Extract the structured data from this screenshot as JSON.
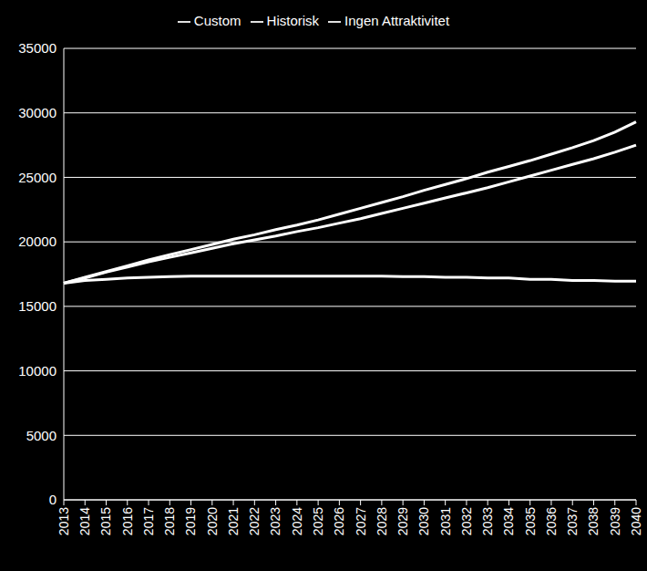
{
  "chart_data": {
    "type": "line",
    "categories": [
      "2013",
      "2014",
      "2015",
      "2016",
      "2017",
      "2018",
      "2019",
      "2020",
      "2021",
      "2022",
      "2023",
      "2024",
      "2025",
      "2026",
      "2027",
      "2028",
      "2029",
      "2030",
      "2031",
      "2032",
      "2033",
      "2034",
      "2035",
      "2036",
      "2037",
      "2038",
      "2039",
      "2040"
    ],
    "series": [
      {
        "name": "Ingen Attraktivitet",
        "color": "#ffffff",
        "values": [
          16800,
          17000,
          17100,
          17200,
          17250,
          17300,
          17350,
          17350,
          17350,
          17350,
          17350,
          17350,
          17350,
          17350,
          17350,
          17350,
          17300,
          17300,
          17250,
          17250,
          17200,
          17200,
          17100,
          17100,
          17000,
          17000,
          16950,
          16950
        ]
      },
      {
        "name": "Historisk",
        "color": "#ffffff",
        "values": [
          16800,
          17250,
          17700,
          18150,
          18600,
          19000,
          19400,
          19800,
          20200,
          20550,
          20950,
          21300,
          21700,
          22150,
          22600,
          23050,
          23500,
          24000,
          24450,
          24900,
          25400,
          25850,
          26300,
          26800,
          27300,
          27850,
          28500,
          29300
        ]
      },
      {
        "name": "Custom",
        "color": "#ffffff",
        "values": [
          16800,
          17200,
          17650,
          18050,
          18450,
          18800,
          19150,
          19500,
          19850,
          20150,
          20450,
          20800,
          21100,
          21450,
          21800,
          22200,
          22600,
          23000,
          23400,
          23800,
          24200,
          24650,
          25100,
          25550,
          26000,
          26450,
          26950,
          27500
        ]
      }
    ],
    "ylim": [
      0,
      35000
    ],
    "yticks": [
      0,
      5000,
      10000,
      15000,
      20000,
      25000,
      30000,
      35000
    ],
    "grid": true,
    "legend": "top"
  }
}
